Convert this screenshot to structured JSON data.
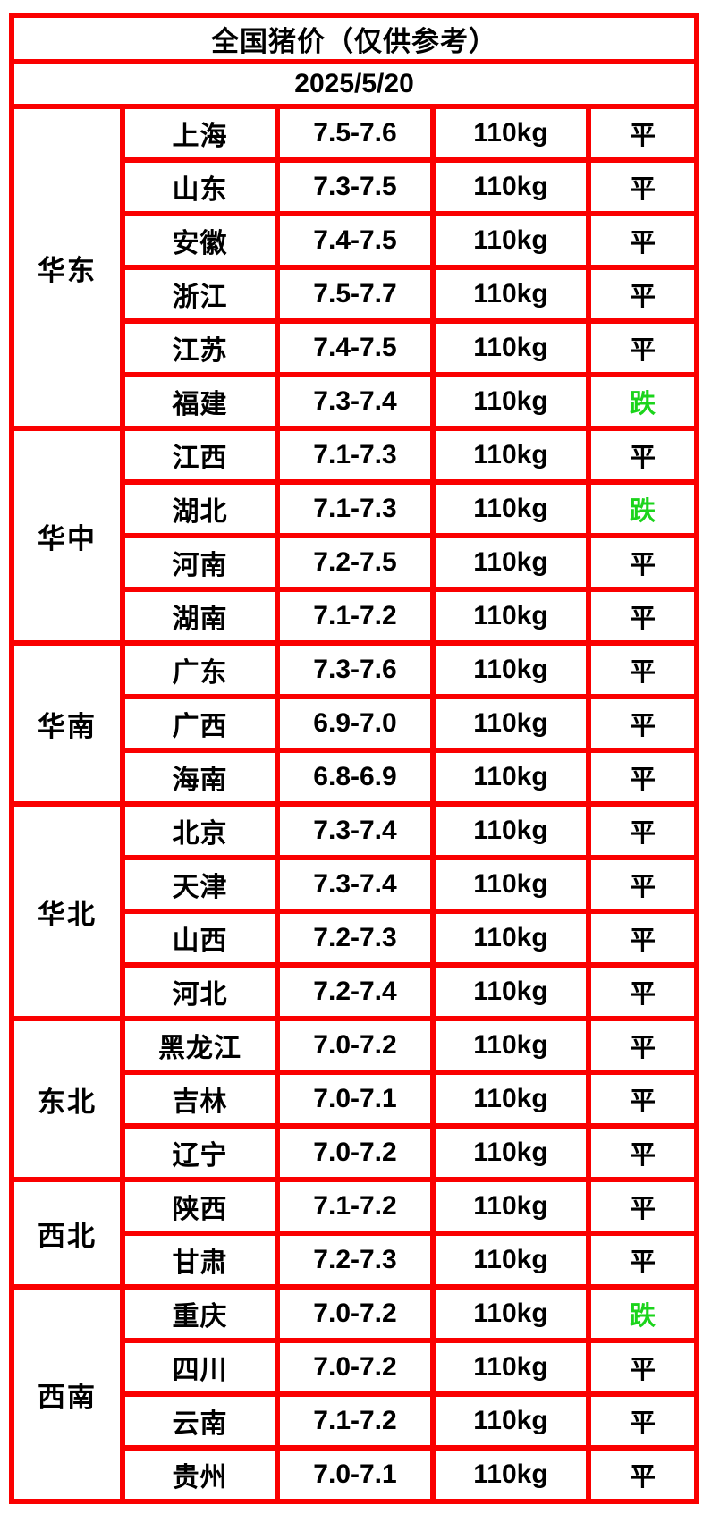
{
  "title": "全国猪价（仅供参考）",
  "date": "2025/5/20",
  "colors": {
    "header_bg": "#EB6418",
    "border": "#FA0000",
    "down_green": "#1BD41B",
    "text": "#000000",
    "cell_bg": "#FFFFFF"
  },
  "status_legend": {
    "flat_label": "平",
    "down_label": "跌"
  },
  "chart_data": {
    "type": "table",
    "title": "全国猪价（仅供参考）",
    "subtitle": "2025/5/20",
    "regions": [
      {
        "name": "华东",
        "rows": [
          {
            "province": "上海",
            "price": "7.5-7.6",
            "weight": "110kg",
            "status": "平",
            "trend": "flat"
          },
          {
            "province": "山东",
            "price": "7.3-7.5",
            "weight": "110kg",
            "status": "平",
            "trend": "flat"
          },
          {
            "province": "安徽",
            "price": "7.4-7.5",
            "weight": "110kg",
            "status": "平",
            "trend": "flat"
          },
          {
            "province": "浙江",
            "price": "7.5-7.7",
            "weight": "110kg",
            "status": "平",
            "trend": "flat"
          },
          {
            "province": "江苏",
            "price": "7.4-7.5",
            "weight": "110kg",
            "status": "平",
            "trend": "flat"
          },
          {
            "province": "福建",
            "price": "7.3-7.4",
            "weight": "110kg",
            "status": "跌",
            "trend": "down"
          }
        ]
      },
      {
        "name": "华中",
        "rows": [
          {
            "province": "江西",
            "price": "7.1-7.3",
            "weight": "110kg",
            "status": "平",
            "trend": "flat"
          },
          {
            "province": "湖北",
            "price": "7.1-7.3",
            "weight": "110kg",
            "status": "跌",
            "trend": "down"
          },
          {
            "province": "河南",
            "price": "7.2-7.5",
            "weight": "110kg",
            "status": "平",
            "trend": "flat"
          },
          {
            "province": "湖南",
            "price": "7.1-7.2",
            "weight": "110kg",
            "status": "平",
            "trend": "flat"
          }
        ]
      },
      {
        "name": "华南",
        "rows": [
          {
            "province": "广东",
            "price": "7.3-7.6",
            "weight": "110kg",
            "status": "平",
            "trend": "flat"
          },
          {
            "province": "广西",
            "price": "6.9-7.0",
            "weight": "110kg",
            "status": "平",
            "trend": "flat"
          },
          {
            "province": "海南",
            "price": "6.8-6.9",
            "weight": "110kg",
            "status": "平",
            "trend": "flat"
          }
        ]
      },
      {
        "name": "华北",
        "rows": [
          {
            "province": "北京",
            "price": "7.3-7.4",
            "weight": "110kg",
            "status": "平",
            "trend": "flat"
          },
          {
            "province": "天津",
            "price": "7.3-7.4",
            "weight": "110kg",
            "status": "平",
            "trend": "flat"
          },
          {
            "province": "山西",
            "price": "7.2-7.3",
            "weight": "110kg",
            "status": "平",
            "trend": "flat"
          },
          {
            "province": "河北",
            "price": "7.2-7.4",
            "weight": "110kg",
            "status": "平",
            "trend": "flat"
          }
        ]
      },
      {
        "name": "东北",
        "rows": [
          {
            "province": "黑龙江",
            "price": "7.0-7.2",
            "weight": "110kg",
            "status": "平",
            "trend": "flat"
          },
          {
            "province": "吉林",
            "price": "7.0-7.1",
            "weight": "110kg",
            "status": "平",
            "trend": "flat"
          },
          {
            "province": "辽宁",
            "price": "7.0-7.2",
            "weight": "110kg",
            "status": "平",
            "trend": "flat"
          }
        ]
      },
      {
        "name": "西北",
        "rows": [
          {
            "province": "陕西",
            "price": "7.1-7.2",
            "weight": "110kg",
            "status": "平",
            "trend": "flat"
          },
          {
            "province": "甘肃",
            "price": "7.2-7.3",
            "weight": "110kg",
            "status": "平",
            "trend": "flat"
          }
        ]
      },
      {
        "name": "西南",
        "rows": [
          {
            "province": "重庆",
            "price": "7.0-7.2",
            "weight": "110kg",
            "status": "跌",
            "trend": "down"
          },
          {
            "province": "四川",
            "price": "7.0-7.2",
            "weight": "110kg",
            "status": "平",
            "trend": "flat"
          },
          {
            "province": "云南",
            "price": "7.1-7.2",
            "weight": "110kg",
            "status": "平",
            "trend": "flat"
          },
          {
            "province": "贵州",
            "price": "7.0-7.1",
            "weight": "110kg",
            "status": "平",
            "trend": "flat"
          }
        ]
      }
    ]
  }
}
